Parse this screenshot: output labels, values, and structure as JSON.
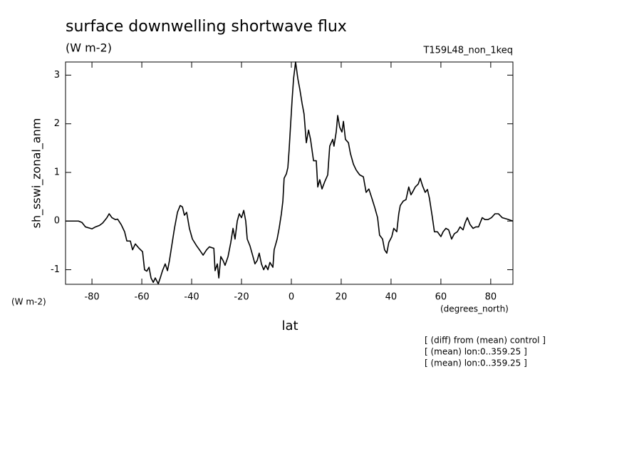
{
  "chart_data": {
    "type": "line",
    "title": "surface downwelling shortwave flux",
    "subtitle": "(W m-2)",
    "run_label": "T159L48_non_1keq",
    "ylabel": "sh_sswi_zonal_anm",
    "yunits": "(W m-2)",
    "xlabel": "lat",
    "xunits": "(degrees_north)",
    "annotations": [
      "[ (diff) from (mean) control ]",
      "[ (mean) lon:0..359.25 ]",
      "[ (mean) lon:0..359.25 ]"
    ],
    "xlim": [
      -90.6,
      88.9
    ],
    "ylim": [
      -1.3,
      3.27
    ],
    "xticks": [
      -80,
      -60,
      -40,
      -20,
      0,
      20,
      40,
      60,
      80
    ],
    "yticks": [
      -1,
      0,
      1,
      2,
      3
    ],
    "color": "#000000",
    "x": [
      -90.6,
      -85.4,
      -84,
      -82.6,
      -80,
      -78.6,
      -77,
      -75.7,
      -74,
      -73.1,
      -72,
      -70.6,
      -69.7,
      -68.3,
      -66.9,
      -66,
      -64.6,
      -63.7,
      -62.6,
      -61.1,
      -59.7,
      -58.9,
      -58,
      -57.1,
      -56.3,
      -55.4,
      -54.6,
      -53.4,
      -52.6,
      -51.7,
      -50.6,
      -49.7,
      -48.9,
      -48,
      -46.9,
      -45.7,
      -44.6,
      -43.7,
      -42.9,
      -42,
      -40.9,
      -39.7,
      -38,
      -36.6,
      -35.4,
      -34,
      -32.9,
      -31.1,
      -30.6,
      -29.7,
      -29.1,
      -28.3,
      -27.4,
      -26.6,
      -25.4,
      -24.3,
      -23.4,
      -22.6,
      -21.7,
      -20.9,
      -20,
      -19.1,
      -18.3,
      -17.7,
      -16.6,
      -15.4,
      -14.6,
      -13.7,
      -12.9,
      -12,
      -11.1,
      -10.3,
      -9.4,
      -8.6,
      -7.4,
      -6.9,
      -5.7,
      -4.9,
      -4,
      -3.4,
      -2.9,
      -2,
      -1.4,
      -0.9,
      -0.3,
      0.3,
      0.9,
      1.7,
      2.6,
      3.4,
      4.3,
      5.1,
      6,
      6.9,
      7.7,
      8.9,
      10,
      10.6,
      11.4,
      12.3,
      13.4,
      14.6,
      15.4,
      16.6,
      17.1,
      18,
      18.6,
      19.4,
      20.3,
      20.9,
      21.7,
      22.9,
      23.7,
      24.9,
      26,
      27.4,
      28.9,
      30,
      31.1,
      32.3,
      33.4,
      34.6,
      35.4,
      36.6,
      37.4,
      38.3,
      39.1,
      40.3,
      41.1,
      42.3,
      43.1,
      43.7,
      44.9,
      46,
      47.1,
      48,
      48.9,
      49.7,
      50.9,
      51.7,
      52.6,
      53.7,
      54.6,
      55.4,
      56.6,
      57.4,
      58.6,
      60,
      60.9,
      62,
      63.1,
      64.3,
      65.4,
      66.6,
      67.7,
      68.9,
      69.7,
      70.6,
      71.7,
      72.9,
      74,
      75.1,
      76.6,
      77.7,
      78.9,
      80.3,
      81.7,
      83.1,
      84.6,
      86.6,
      88.9
    ],
    "values": [
      0,
      0,
      -0.03,
      -0.12,
      -0.16,
      -0.12,
      -0.09,
      -0.04,
      0.07,
      0.15,
      0.07,
      0.03,
      0.04,
      -0.07,
      -0.22,
      -0.41,
      -0.41,
      -0.59,
      -0.47,
      -0.56,
      -0.63,
      -1.0,
      -1.03,
      -0.95,
      -1.17,
      -1.26,
      -1.17,
      -1.29,
      -1.17,
      -1.02,
      -0.88,
      -1.02,
      -0.81,
      -0.51,
      -0.15,
      0.18,
      0.32,
      0.29,
      0.12,
      0.18,
      -0.15,
      -0.37,
      -0.51,
      -0.61,
      -0.7,
      -0.59,
      -0.53,
      -0.56,
      -1.02,
      -0.88,
      -1.17,
      -0.73,
      -0.81,
      -0.91,
      -0.73,
      -0.44,
      -0.15,
      -0.37,
      0,
      0.15,
      0.07,
      0.22,
      0,
      -0.37,
      -0.51,
      -0.73,
      -0.88,
      -0.81,
      -0.66,
      -0.88,
      -1.0,
      -0.91,
      -1.0,
      -0.85,
      -0.95,
      -0.59,
      -0.37,
      -0.15,
      0.15,
      0.41,
      0.88,
      0.97,
      1.1,
      1.46,
      1.98,
      2.49,
      2.93,
      3.27,
      2.93,
      2.71,
      2.42,
      2.2,
      1.61,
      1.87,
      1.68,
      1.24,
      1.24,
      0.7,
      0.85,
      0.66,
      0.81,
      0.95,
      1.54,
      1.68,
      1.54,
      1.83,
      2.17,
      1.93,
      1.83,
      2.05,
      1.68,
      1.61,
      1.39,
      1.17,
      1.05,
      0.95,
      0.91,
      0.59,
      0.66,
      0.47,
      0.29,
      0.07,
      -0.29,
      -0.37,
      -0.59,
      -0.66,
      -0.44,
      -0.32,
      -0.15,
      -0.22,
      0.15,
      0.32,
      0.41,
      0.44,
      0.7,
      0.54,
      0.62,
      0.7,
      0.76,
      0.88,
      0.73,
      0.59,
      0.65,
      0.47,
      0.07,
      -0.22,
      -0.22,
      -0.32,
      -0.22,
      -0.15,
      -0.18,
      -0.37,
      -0.26,
      -0.22,
      -0.12,
      -0.18,
      -0.04,
      0.07,
      -0.07,
      -0.15,
      -0.12,
      -0.12,
      0.07,
      0.03,
      0.03,
      0.07,
      0.15,
      0.15,
      0.07,
      0.04,
      0
    ]
  }
}
